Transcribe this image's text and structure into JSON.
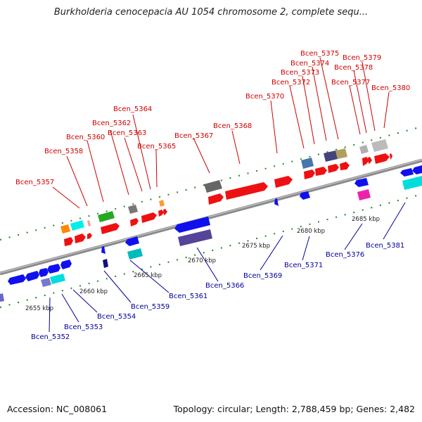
{
  "title": "Burkholderia cenocepacia AU 1054 chromosome 2, complete sequ...",
  "footer": {
    "accession": "Accession: NC_008061",
    "summary": "Topology: circular; Length: 2,788,459 bp; Genes: 2,482"
  },
  "colors": {
    "forward_gene": "#ee0000",
    "reverse_gene": "#1010ee",
    "top_label": "#cc0000",
    "bottom_label": "#000099",
    "backbone": "#888888",
    "tick": "#228822"
  },
  "scale_labels": [
    "2655 kbp",
    "2660 kbp",
    "2665 kbp",
    "2670 kbp",
    "2675 kbp",
    "2680 kbp",
    "2685 kbp"
  ],
  "top_genes": [
    "Bcen_5357",
    "Bcen_5358",
    "Bcen_5360",
    "Bcen_5362",
    "Bcen_5363",
    "Bcen_5364",
    "Bcen_5365",
    "Bcen_5367",
    "Bcen_5368",
    "Bcen_5370",
    "Bcen_5372",
    "Bcen_5373",
    "Bcen_5374",
    "Bcen_5375",
    "Bcen_5377",
    "Bcen_5378",
    "Bcen_5379",
    "Bcen_5380"
  ],
  "bottom_genes": [
    "Bcen_5352",
    "Bcen_5353",
    "Bcen_5354",
    "Bcen_5359",
    "Bcen_5361",
    "Bcen_5366",
    "Bcen_5369",
    "Bcen_5371",
    "Bcen_5376",
    "Bcen_5381"
  ]
}
